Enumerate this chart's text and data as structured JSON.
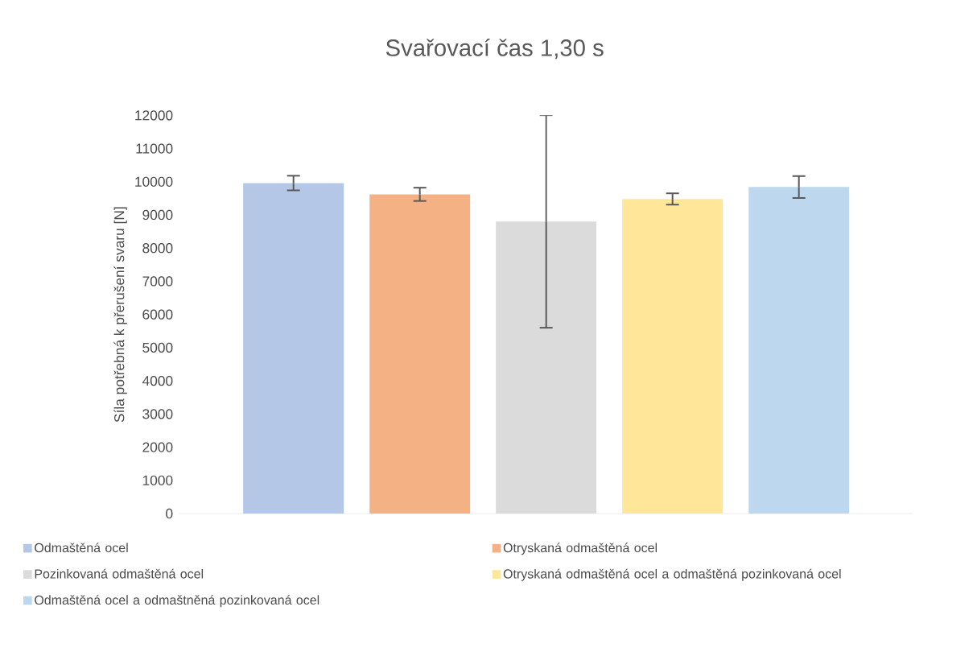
{
  "chart_data": {
    "type": "bar",
    "title": "Svařovací čas 1,30 s",
    "ylabel": "Síla potřebná k přerušení svaru [N]",
    "categories": [
      null
    ],
    "series": [
      {
        "name": "Odmaštěná ocel",
        "color": "#b4c7e7",
        "values": [
          9960
        ],
        "errors": [
          220
        ]
      },
      {
        "name": "Otryskaná odmaštěná ocel",
        "color": "#f4b183",
        "values": [
          9620
        ],
        "errors": [
          200
        ]
      },
      {
        "name": "Pozinkovaná odmaštěná ocel",
        "color": "#dbdbdb",
        "values": [
          8800
        ],
        "errors": [
          3200
        ]
      },
      {
        "name": "Otryskaná odmaštěná ocel a odmaštěná pozinkovaná ocel",
        "color": "#ffe699",
        "values": [
          9480
        ],
        "errors": [
          170
        ]
      },
      {
        "name": "Odmaštěná ocel a odmaštněná pozinkovaná ocel",
        "color": "#bdd7ee",
        "values": [
          9840
        ],
        "errors": [
          330
        ]
      }
    ],
    "ylim": [
      0,
      12000
    ],
    "yticks": [
      0,
      1000,
      2000,
      3000,
      4000,
      5000,
      6000,
      7000,
      8000,
      9000,
      10000,
      11000,
      12000
    ],
    "legend": "bottom"
  }
}
